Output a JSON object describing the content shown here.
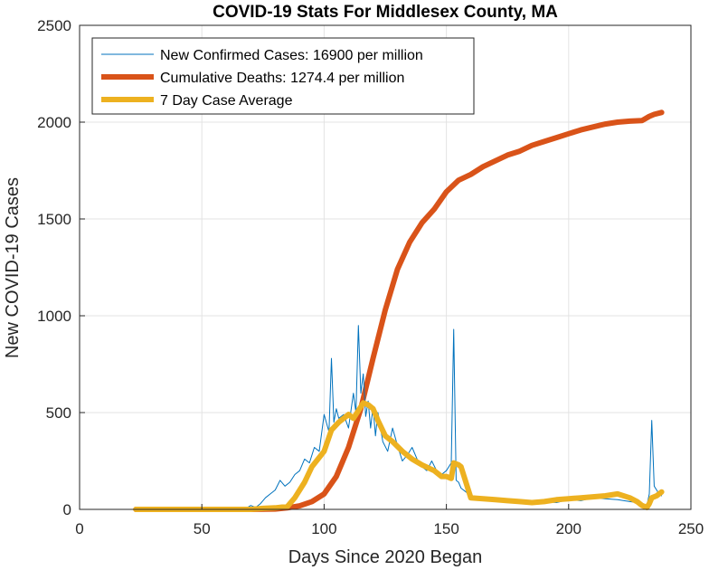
{
  "chart_data": {
    "type": "line",
    "title": "COVID-19 Stats For Middlesex County, MA",
    "xlabel": "Days Since 2020 Began",
    "ylabel": "New COVID-19 Cases",
    "xlim": [
      0,
      250
    ],
    "ylim": [
      0,
      2500
    ],
    "xticks": [
      0,
      50,
      100,
      150,
      200,
      250
    ],
    "yticks": [
      0,
      500,
      1000,
      1500,
      2000,
      2500
    ],
    "grid": true,
    "legend_position": "top-left",
    "series": [
      {
        "name": "New Confirmed Cases: 16900 per million",
        "color": "#0072bd",
        "style": "thin",
        "x": [
          23,
          60,
          68,
          70,
          72,
          74,
          76,
          78,
          80,
          82,
          84,
          86,
          88,
          90,
          92,
          94,
          96,
          98,
          100,
          102,
          103,
          104,
          105,
          106,
          108,
          110,
          112,
          113,
          114,
          115,
          116,
          117,
          118,
          119,
          120,
          121,
          122,
          124,
          126,
          128,
          130,
          132,
          134,
          136,
          138,
          140,
          142,
          144,
          146,
          148,
          150,
          152,
          153,
          154,
          155,
          156,
          158,
          160,
          162,
          165,
          170,
          175,
          180,
          185,
          190,
          195,
          200,
          205,
          210,
          215,
          220,
          225,
          228,
          230,
          232,
          233,
          234,
          235,
          236,
          237,
          238
        ],
        "y": [
          0,
          0,
          5,
          20,
          10,
          30,
          60,
          80,
          100,
          150,
          120,
          140,
          180,
          200,
          260,
          240,
          320,
          300,
          490,
          400,
          780,
          450,
          520,
          470,
          490,
          420,
          600,
          500,
          950,
          600,
          700,
          480,
          560,
          420,
          530,
          380,
          500,
          350,
          300,
          420,
          330,
          250,
          280,
          320,
          260,
          220,
          200,
          250,
          200,
          180,
          200,
          240,
          930,
          150,
          140,
          110,
          90,
          70,
          60,
          50,
          55,
          40,
          45,
          30,
          40,
          35,
          50,
          45,
          60,
          55,
          50,
          40,
          35,
          30,
          20,
          80,
          460,
          120,
          100,
          80,
          70
        ]
      },
      {
        "name": "Cumulative Deaths: 1274.4 per million",
        "color": "#d95319",
        "style": "thick",
        "x": [
          23,
          70,
          80,
          85,
          90,
          95,
          100,
          105,
          110,
          115,
          120,
          125,
          130,
          135,
          140,
          145,
          150,
          155,
          160,
          165,
          170,
          175,
          180,
          185,
          190,
          195,
          200,
          205,
          210,
          215,
          220,
          225,
          230,
          233,
          235,
          238
        ],
        "y": [
          0,
          0,
          2,
          8,
          18,
          40,
          80,
          170,
          320,
          520,
          780,
          1030,
          1240,
          1380,
          1480,
          1550,
          1640,
          1700,
          1730,
          1770,
          1800,
          1830,
          1850,
          1880,
          1900,
          1920,
          1940,
          1960,
          1975,
          1990,
          2000,
          2005,
          2008,
          2030,
          2040,
          2050
        ]
      },
      {
        "name": "7 Day Case Average",
        "color": "#edb120",
        "style": "thick",
        "x": [
          23,
          60,
          70,
          75,
          80,
          85,
          88,
          92,
          95,
          100,
          103,
          106,
          108,
          110,
          112,
          114,
          116,
          118,
          120,
          122,
          125,
          128,
          132,
          136,
          140,
          145,
          148,
          150,
          152,
          153,
          155,
          156,
          160,
          165,
          170,
          175,
          180,
          185,
          190,
          195,
          200,
          205,
          210,
          215,
          220,
          225,
          228,
          230,
          232,
          233,
          234,
          236,
          238
        ],
        "y": [
          0,
          0,
          0,
          5,
          8,
          15,
          60,
          140,
          220,
          300,
          410,
          450,
          470,
          490,
          470,
          510,
          550,
          540,
          520,
          460,
          380,
          350,
          300,
          260,
          230,
          200,
          170,
          170,
          160,
          240,
          230,
          220,
          60,
          55,
          50,
          45,
          40,
          35,
          40,
          50,
          55,
          60,
          65,
          70,
          80,
          60,
          40,
          20,
          10,
          30,
          60,
          70,
          90
        ]
      }
    ]
  }
}
